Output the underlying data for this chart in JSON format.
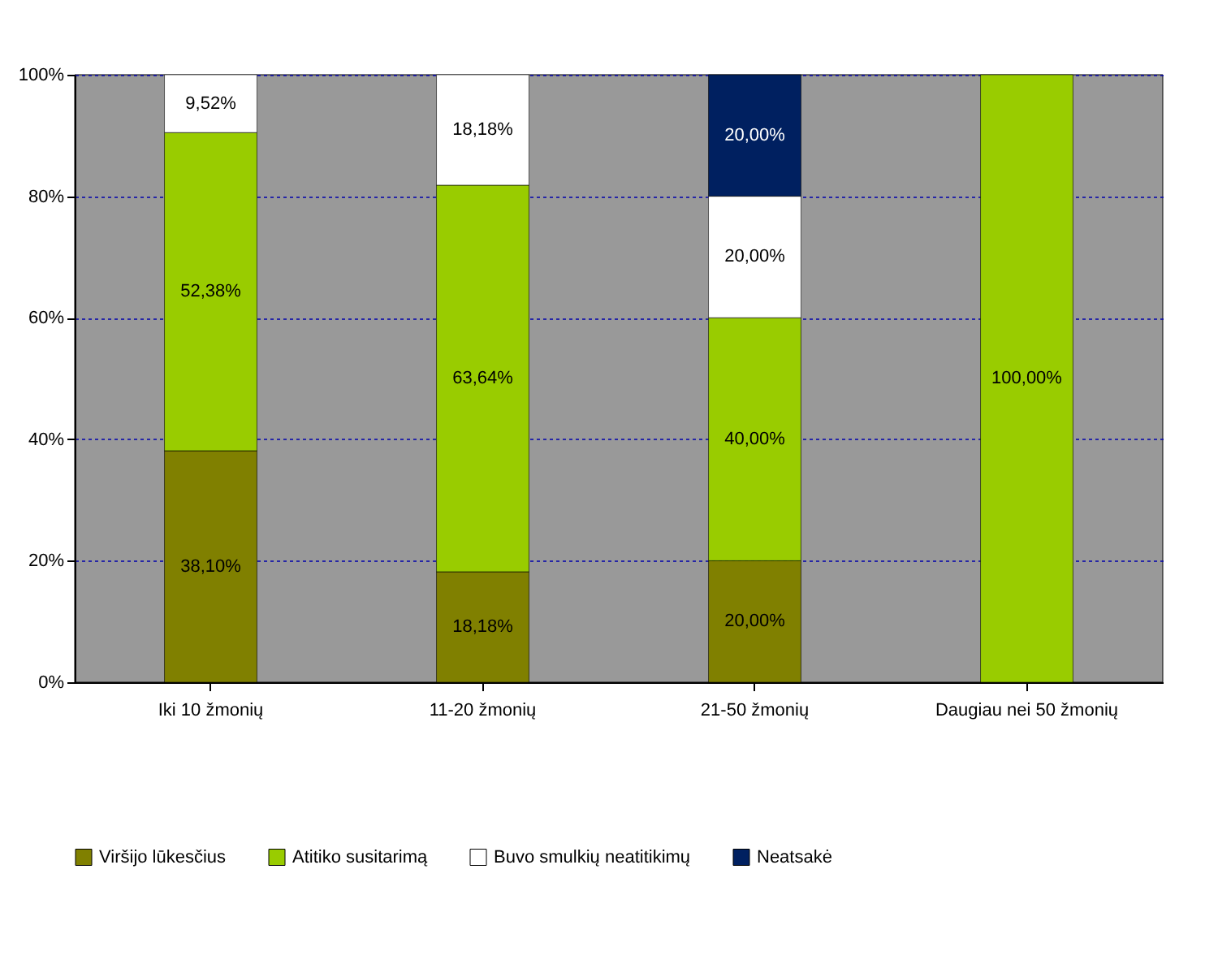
{
  "chart_data": {
    "type": "bar",
    "stacked": true,
    "categories": [
      "Iki 10 žmonių",
      "11-20 žmonių",
      "21-50 žmonių",
      "Daugiau nei 50 žmonių"
    ],
    "series": [
      {
        "name": "Viršijo lūkesčius",
        "color": "#808000",
        "values": [
          38.1,
          18.18,
          20.0,
          null
        ],
        "value_labels": [
          "38,10%",
          "18,18%",
          "20,00%",
          null
        ]
      },
      {
        "name": "Atitiko susitarimą",
        "color": "#99cc00",
        "values": [
          52.38,
          63.64,
          40.0,
          100.0
        ],
        "value_labels": [
          "52,38%",
          "63,64%",
          "40,00%",
          "100,00%"
        ]
      },
      {
        "name": "Buvo smulkių neatitikimų",
        "color": "#ffffff",
        "values": [
          9.52,
          18.18,
          20.0,
          null
        ],
        "value_labels": [
          "9,52%",
          "18,18%",
          "20,00%",
          null
        ]
      },
      {
        "name": "Neatsakė",
        "color": "#002060",
        "values": [
          null,
          null,
          20.0,
          null
        ],
        "value_labels": [
          null,
          null,
          "20,00%",
          null
        ]
      }
    ],
    "ylim": [
      0,
      100
    ],
    "yticks": [
      {
        "value": 0,
        "label": "0%"
      },
      {
        "value": 20,
        "label": "20%"
      },
      {
        "value": 40,
        "label": "40%"
      },
      {
        "value": 60,
        "label": "60%"
      },
      {
        "value": 80,
        "label": "80%"
      },
      {
        "value": 100,
        "label": "100%"
      }
    ],
    "grid": "y",
    "legend": "bottom"
  }
}
